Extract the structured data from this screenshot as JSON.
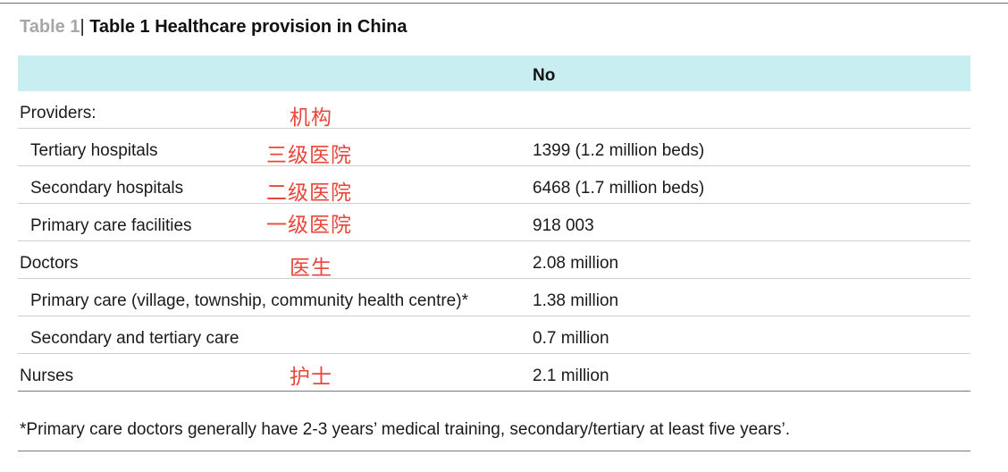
{
  "table": {
    "label": "Table 1",
    "separator": "|",
    "title": "Table 1 Healthcare provision in China",
    "column_header": "No",
    "rows": [
      {
        "name": "Providers:",
        "note": "机构",
        "value": ""
      },
      {
        "name": "Tertiary hospitals",
        "note": "三级医院",
        "value": "1399 (1.2 million beds)"
      },
      {
        "name": "Secondary hospitals",
        "note": "二级医院",
        "value": "6468 (1.7 million beds)"
      },
      {
        "name": "Primary care facilities",
        "note": "一级医院",
        "value": "918 003"
      },
      {
        "name": "Doctors",
        "note": "医生",
        "value": "2.08 million"
      },
      {
        "name": "Primary care (village, township, community health centre)*",
        "note": "",
        "value": "1.38 million"
      },
      {
        "name": "Secondary and tertiary care",
        "note": "",
        "value": "0.7 million"
      },
      {
        "name": "Nurses",
        "note": "护士",
        "value": "2.1 million"
      }
    ],
    "footnote": "*Primary care doctors generally have 2-3 years’ medical training, secondary/tertiary at least five years’."
  }
}
